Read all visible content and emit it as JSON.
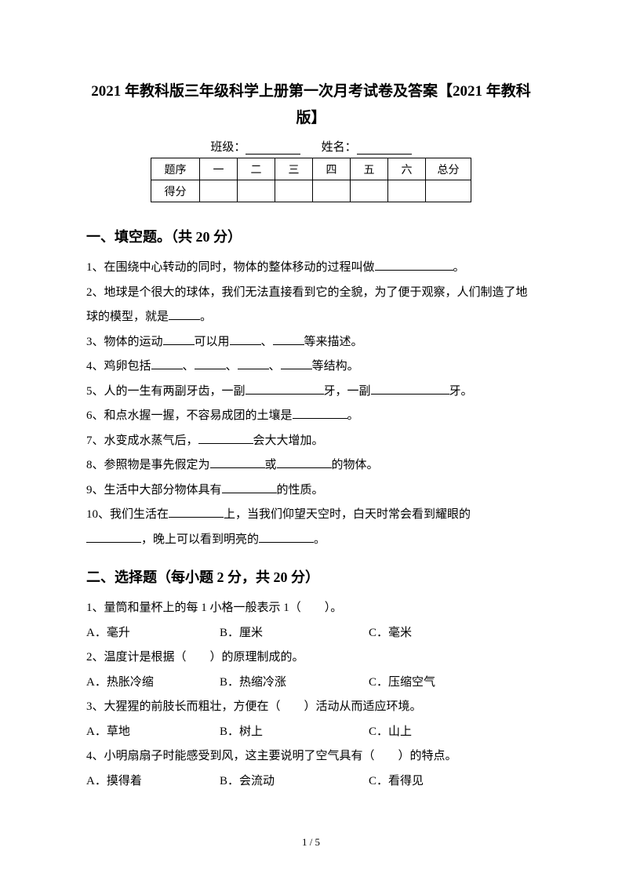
{
  "title": "2021 年教科版三年级科学上册第一次月考试卷及答案【2021 年教科版】",
  "classLabel": "班级：",
  "nameLabel": "姓名：",
  "scoreTable": {
    "row1": [
      "题序",
      "一",
      "二",
      "三",
      "四",
      "五",
      "六",
      "总分"
    ],
    "row2Label": "得分"
  },
  "section1": {
    "header": "一、填空题。（共 20 分）",
    "q1a": "1、在围绕中心转动的同时，物体的整体移动的过程叫做",
    "q1b": "。",
    "q2a": "2、地球是个很大的球体，我们无法直接看到它的全貌，为了便于观察，人们制造了地球的模型，就是",
    "q2b": "。",
    "q3a": "3、物体的运动",
    "q3b": "可以用",
    "q3c": "、",
    "q3d": "等来描述。",
    "q4a": "4、鸡卵包括",
    "q4b": "、",
    "q4c": "、",
    "q4d": "、",
    "q4e": "等结构。",
    "q5a": "5、人的一生有两副牙齿，一副",
    "q5b": "牙，一副",
    "q5c": "牙。",
    "q6a": "6、和点水握一握，不容易成团的土壤是",
    "q6b": "。",
    "q7a": "7、水变成水蒸气后，",
    "q7b": "会大大增加。",
    "q8a": "8、参照物是事先假定为",
    "q8b": "或",
    "q8c": "的物体。",
    "q9a": "9、生活中大部分物体具有",
    "q9b": "的性质。",
    "q10a": "10、我们生活在",
    "q10b": "上，当我们仰望天空时，白天时常会看到耀眼的",
    "q10c": "，晚上可以看到明亮的",
    "q10d": "。"
  },
  "section2": {
    "header": "二、选择题（每小题 2 分，共 20 分）",
    "q1": "1、量筒和量杯上的每 1 小格一般表示 1（　　）。",
    "q1a": "A．毫升",
    "q1b": "B．厘米",
    "q1c": "C．毫米",
    "q2": "2、温度计是根据（　　）的原理制成的。",
    "q2a": "A．热胀冷缩",
    "q2b": "B．热缩冷涨",
    "q2c": "C．压缩空气",
    "q3": "3、大猩猩的前肢长而粗壮，方便在（　　）活动从而适应环境。",
    "q3a": "A．草地",
    "q3b": "B．树上",
    "q3c": "C．山上",
    "q4": "4、小明扇扇子时能感受到风，这主要说明了空气具有（　　）的特点。",
    "q4a": "A．摸得着",
    "q4b": "B．会流动",
    "q4c": "C．看得见"
  },
  "pageNum": "1 / 5"
}
